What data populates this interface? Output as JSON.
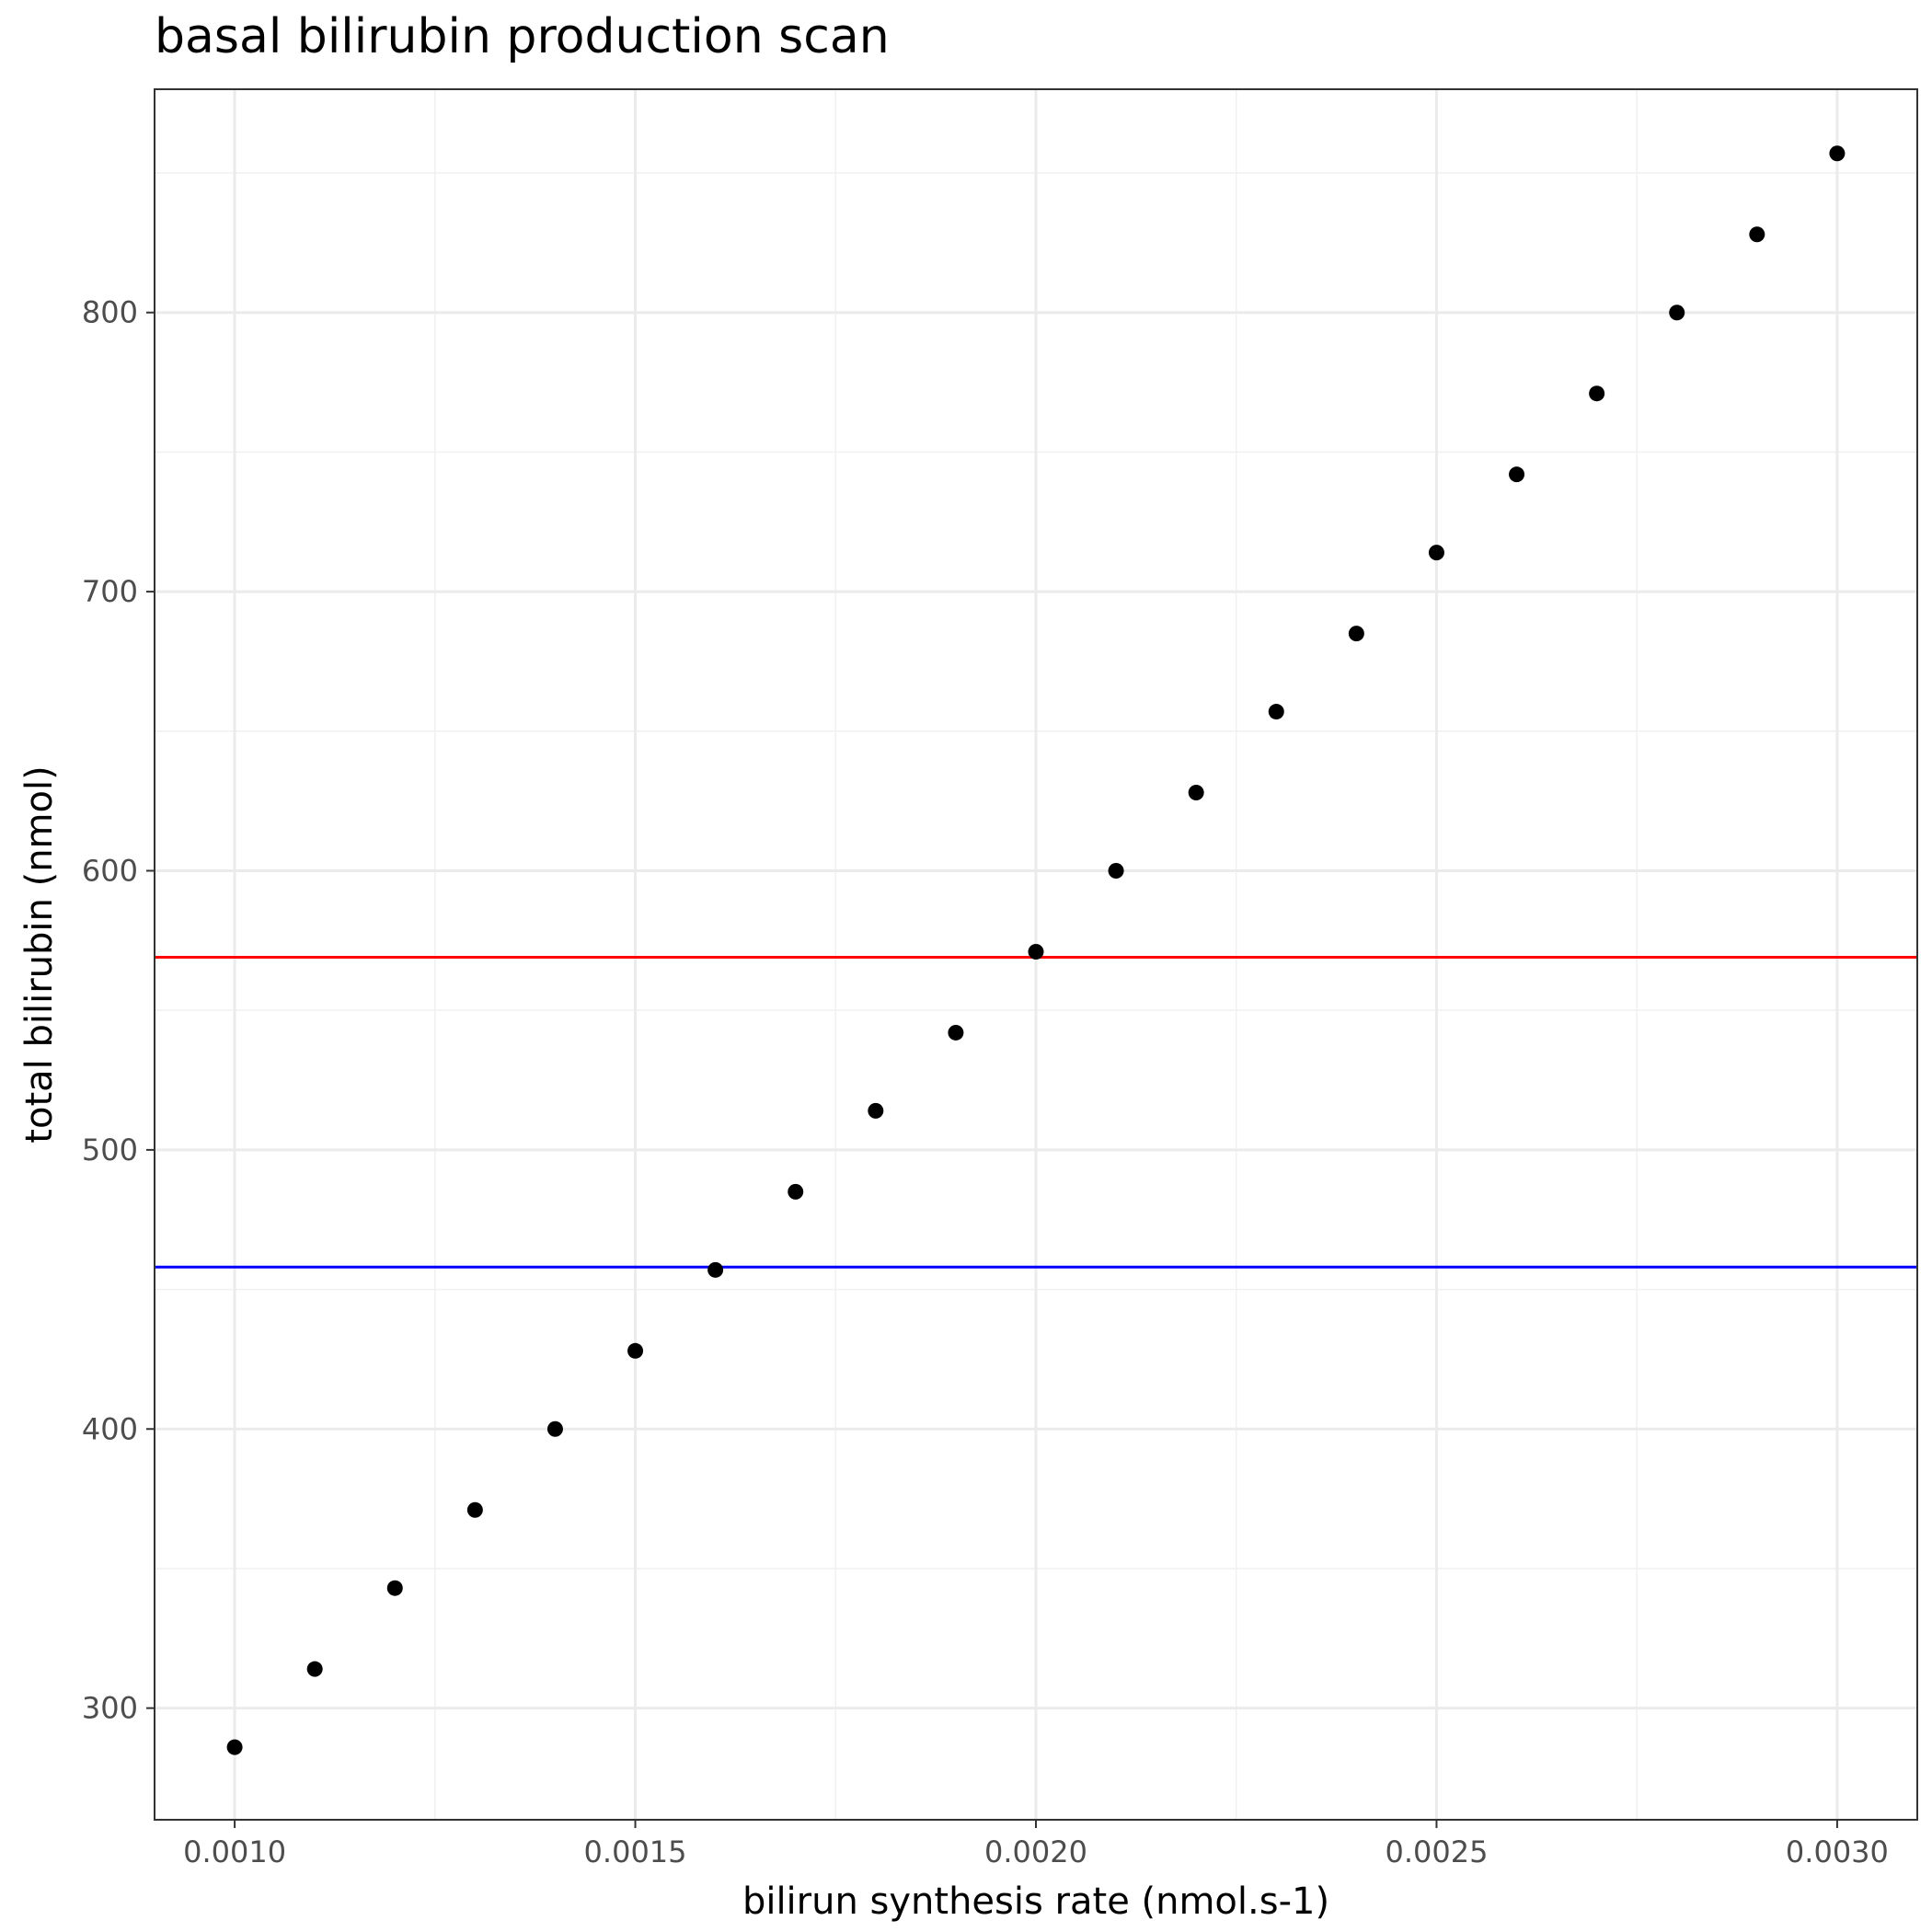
{
  "chart_data": {
    "type": "scatter",
    "title": "basal bilirubin production scan",
    "xlabel": "bilirun synthesis rate (nmol.s-1)",
    "ylabel": "total bilirubin (nmol)",
    "xlim": [
      0.0009,
      0.0031
    ],
    "ylim": [
      260,
      880
    ],
    "x_ticks": [
      0.001,
      0.0015,
      0.002,
      0.0025,
      0.003
    ],
    "x_tick_labels": [
      "0.0010",
      "0.0015",
      "0.0020",
      "0.0025",
      "0.0030"
    ],
    "y_ticks": [
      300,
      400,
      500,
      600,
      700,
      800
    ],
    "y_tick_labels": [
      "300",
      "400",
      "500",
      "600",
      "700",
      "800"
    ],
    "x_minor_ticks": [
      0.00125,
      0.00175,
      0.00225,
      0.00275
    ],
    "y_minor_ticks": [
      350,
      450,
      550,
      650,
      750,
      850
    ],
    "grid": true,
    "legend": "none",
    "points": {
      "x": [
        0.001,
        0.0011,
        0.0012,
        0.0013,
        0.0014,
        0.0015,
        0.0016,
        0.0017,
        0.0018,
        0.0019,
        0.002,
        0.0021,
        0.0022,
        0.0023,
        0.0024,
        0.0025,
        0.0026,
        0.0027,
        0.0028,
        0.0029,
        0.003
      ],
      "y": [
        286,
        314,
        343,
        371,
        400,
        428,
        457,
        485,
        514,
        542,
        571,
        600,
        628,
        657,
        685,
        714,
        742,
        771,
        800,
        828,
        857
      ],
      "color": "#000000"
    },
    "hlines": [
      {
        "y": 569,
        "color": "#ff0000"
      },
      {
        "y": 458,
        "color": "#0000ff"
      }
    ]
  }
}
